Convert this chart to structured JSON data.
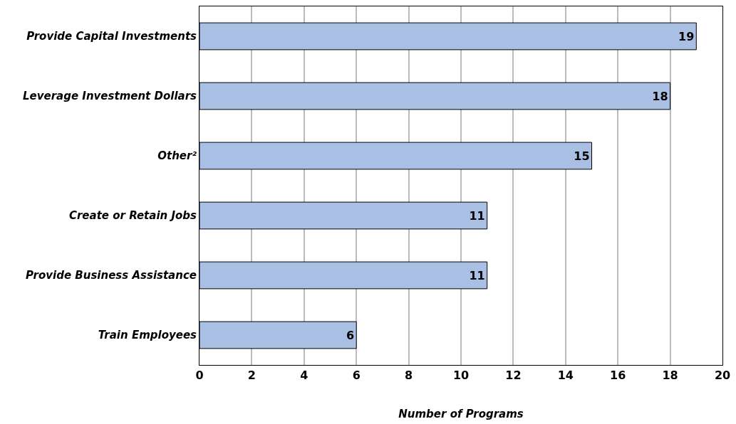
{
  "chart_data": {
    "type": "bar",
    "orientation": "horizontal",
    "xlabel": "Number of Programs",
    "categories": [
      "Provide Capital Investments",
      "Leverage Investment Dollars",
      "Other²",
      "Create or Retain Jobs",
      "Provide Business Assistance",
      "Train Employees"
    ],
    "values": [
      19,
      18,
      15,
      11,
      11,
      6
    ],
    "color": "#a9c0e4",
    "xlim": [
      0,
      20
    ],
    "xticks": [
      0,
      2,
      4,
      6,
      8,
      10,
      12,
      14,
      16,
      18,
      20
    ],
    "grid": "x",
    "data_labels": true,
    "legend": false
  }
}
